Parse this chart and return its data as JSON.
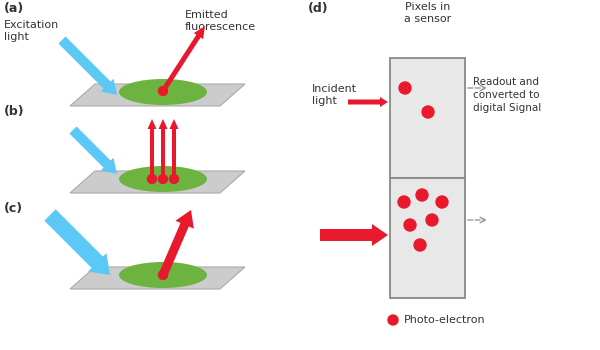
{
  "bg_color": "#ffffff",
  "gray_plate_color": "#cccccc",
  "green_ellipse_color": "#6db33f",
  "cyan_color": "#5bc8f5",
  "red_color": "#e8192c",
  "gray_line_color": "#999999",
  "sensor_bg_color": "#e8e8e8",
  "sensor_border_color": "#888888",
  "text_color": "#333333",
  "panel_labels": [
    "(a)",
    "(b)",
    "(c)",
    "(d)"
  ],
  "label_excitation": "Excitation\nlight",
  "label_emitted": "Emitted\nfluorescence",
  "label_incident": "Incident\nlight",
  "label_pixels": "Pixels in\na sensor",
  "label_readout": "Readout and\nconverted to\ndigital Signal",
  "label_photoelectron": "Photo-electron"
}
